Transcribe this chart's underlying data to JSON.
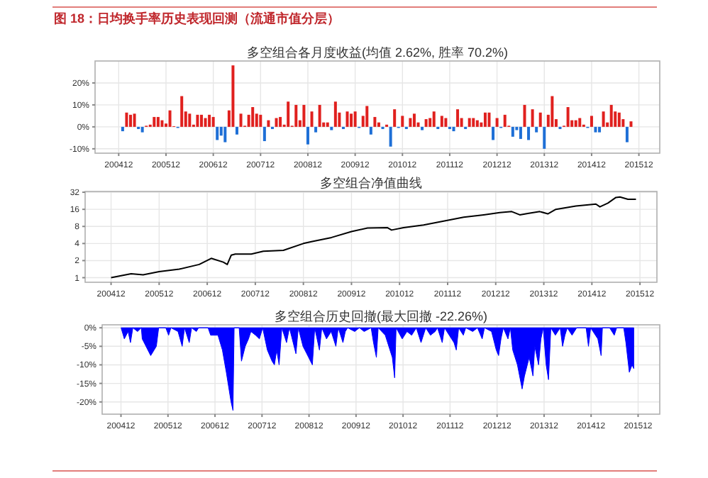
{
  "chart_data": [
    {
      "type": "bar",
      "title": "多空组合各月度收益(均值 2.62%, 胜率 70.2%)",
      "annotations": [
        "图 18：日均换手率历史表现回测（流通市值分层）"
      ],
      "grid": true,
      "xlim": [
        "2004-06-01",
        "2016-05-10"
      ],
      "ylim": [
        -12,
        30
      ],
      "xticks": [
        {
          "value": "2004-12",
          "label": "200412"
        },
        {
          "value": "2005-12",
          "label": "200512"
        },
        {
          "value": "2006-12",
          "label": "200612"
        },
        {
          "value": "2007-12",
          "label": "200712"
        },
        {
          "value": "2008-12",
          "label": "200812"
        },
        {
          "value": "2009-12",
          "label": "200912"
        },
        {
          "value": "2010-12",
          "label": "201012"
        },
        {
          "value": "2011-12",
          "label": "201112"
        },
        {
          "value": "2012-12",
          "label": "201212"
        },
        {
          "value": "2013-12",
          "label": "201312"
        },
        {
          "value": "2014-12",
          "label": "201412"
        },
        {
          "value": "2015-12",
          "label": "201512"
        }
      ],
      "yticks": [
        {
          "value": -10,
          "label": "-10%"
        },
        {
          "value": 0,
          "label": "0%"
        },
        {
          "value": 10,
          "label": "10%"
        },
        {
          "value": 20,
          "label": "20%"
        }
      ],
      "x": [
        "2005-01",
        "2005-02",
        "2005-03",
        "2005-04",
        "2005-05",
        "2005-06",
        "2005-07",
        "2005-08",
        "2005-09",
        "2005-10",
        "2005-11",
        "2005-12",
        "2006-01",
        "2006-02",
        "2006-03",
        "2006-04",
        "2006-05",
        "2006-06",
        "2006-07",
        "2006-08",
        "2006-09",
        "2006-10",
        "2006-11",
        "2006-12",
        "2007-01",
        "2007-02",
        "2007-03",
        "2007-04",
        "2007-05",
        "2007-06",
        "2007-07",
        "2007-08",
        "2007-09",
        "2007-10",
        "2007-11",
        "2007-12",
        "2008-01",
        "2008-02",
        "2008-03",
        "2008-04",
        "2008-05",
        "2008-06",
        "2008-07",
        "2008-08",
        "2008-09",
        "2008-10",
        "2008-11",
        "2008-12",
        "2009-01",
        "2009-02",
        "2009-03",
        "2009-04",
        "2009-05",
        "2009-06",
        "2009-07",
        "2009-08",
        "2009-09",
        "2009-10",
        "2009-11",
        "2009-12",
        "2010-01",
        "2010-02",
        "2010-03",
        "2010-04",
        "2010-05",
        "2010-06",
        "2010-07",
        "2010-08",
        "2010-09",
        "2010-10",
        "2010-11",
        "2010-12",
        "2011-01",
        "2011-02",
        "2011-03",
        "2011-04",
        "2011-05",
        "2011-06",
        "2011-07",
        "2011-08",
        "2011-09",
        "2011-10",
        "2011-11",
        "2011-12",
        "2012-01",
        "2012-02",
        "2012-03",
        "2012-04",
        "2012-05",
        "2012-06",
        "2012-07",
        "2012-08",
        "2012-09",
        "2012-10",
        "2012-11",
        "2012-12",
        "2013-01",
        "2013-02",
        "2013-03",
        "2013-04",
        "2013-05",
        "2013-06",
        "2013-07",
        "2013-08",
        "2013-09",
        "2013-10",
        "2013-11",
        "2013-12",
        "2014-01",
        "2014-02",
        "2014-03",
        "2014-04",
        "2014-05",
        "2014-06",
        "2014-07",
        "2014-08",
        "2014-09",
        "2014-10",
        "2014-11",
        "2014-12",
        "2015-01",
        "2015-02",
        "2015-03",
        "2015-04",
        "2015-05",
        "2015-06",
        "2015-07",
        "2015-08",
        "2015-09",
        "2015-10"
      ],
      "values": [
        -2,
        6.5,
        5.5,
        6,
        -1,
        -2.5,
        0.5,
        1,
        4.5,
        4.5,
        3,
        1.5,
        7.5,
        0.3,
        -0.5,
        14,
        7,
        6,
        1,
        5.5,
        5.5,
        4,
        5.5,
        4.5,
        -6,
        -4,
        -7,
        7.5,
        28,
        -3.5,
        6,
        0.5,
        5.5,
        9,
        6,
        5.5,
        -6.5,
        3,
        -1,
        4,
        4.5,
        1,
        11.5,
        0.5,
        10,
        3,
        10,
        -8,
        7,
        -2.5,
        10,
        2,
        2,
        -1.5,
        11.5,
        6.5,
        -1,
        7,
        6,
        7,
        -0.5,
        5,
        9.5,
        -3.5,
        4.5,
        2,
        -1,
        1,
        -9,
        8,
        -0.5,
        5,
        -1,
        4,
        6,
        2,
        -1.5,
        3.5,
        4,
        7,
        -1,
        5,
        4,
        -1,
        -2,
        8,
        4,
        -1,
        4,
        4,
        3,
        2,
        6.5,
        6.5,
        -6,
        4,
        -0.5,
        5.5,
        0.5,
        -4.5,
        -1.5,
        -5.5,
        10,
        -6,
        8,
        -2.5,
        6.5,
        -10,
        5.5,
        14,
        3.5,
        -1,
        0.5,
        9,
        3,
        3,
        4,
        1,
        -0.5,
        5,
        -2.5,
        -2.5,
        7,
        2,
        10,
        7,
        6.5,
        3.5,
        -7,
        2.5
      ],
      "colors": [
        "#1e6fd6",
        "#e0201e",
        "#e0201e",
        "#e0201e",
        "#1e6fd6",
        "#1e6fd6",
        "#e0201e",
        "#e0201e",
        "#e0201e",
        "#e0201e",
        "#e0201e",
        "#e0201e",
        "#e0201e",
        "#e0201e",
        "#1e6fd6",
        "#e0201e",
        "#e0201e",
        "#e0201e",
        "#e0201e",
        "#e0201e",
        "#e0201e",
        "#e0201e",
        "#e0201e",
        "#e0201e",
        "#1e6fd6",
        "#1e6fd6",
        "#1e6fd6",
        "#e0201e",
        "#e0201e",
        "#1e6fd6",
        "#e0201e",
        "#e0201e",
        "#e0201e",
        "#e0201e",
        "#e0201e",
        "#e0201e",
        "#1e6fd6",
        "#e0201e",
        "#1e6fd6",
        "#e0201e",
        "#e0201e",
        "#e0201e",
        "#e0201e",
        "#e0201e",
        "#e0201e",
        "#e0201e",
        "#e0201e",
        "#1e6fd6",
        "#e0201e",
        "#1e6fd6",
        "#e0201e",
        "#e0201e",
        "#e0201e",
        "#1e6fd6",
        "#e0201e",
        "#e0201e",
        "#1e6fd6",
        "#e0201e",
        "#e0201e",
        "#e0201e",
        "#1e6fd6",
        "#e0201e",
        "#e0201e",
        "#1e6fd6",
        "#e0201e",
        "#e0201e",
        "#1e6fd6",
        "#e0201e",
        "#1e6fd6",
        "#e0201e",
        "#1e6fd6",
        "#e0201e",
        "#1e6fd6",
        "#e0201e",
        "#e0201e",
        "#e0201e",
        "#1e6fd6",
        "#e0201e",
        "#e0201e",
        "#e0201e",
        "#1e6fd6",
        "#e0201e",
        "#e0201e",
        "#1e6fd6",
        "#1e6fd6",
        "#e0201e",
        "#e0201e",
        "#1e6fd6",
        "#e0201e",
        "#e0201e",
        "#e0201e",
        "#e0201e",
        "#e0201e",
        "#e0201e",
        "#1e6fd6",
        "#e0201e",
        "#1e6fd6",
        "#e0201e",
        "#e0201e",
        "#1e6fd6",
        "#1e6fd6",
        "#1e6fd6",
        "#e0201e",
        "#1e6fd6",
        "#e0201e",
        "#1e6fd6",
        "#e0201e",
        "#1e6fd6",
        "#e0201e",
        "#e0201e",
        "#e0201e",
        "#1e6fd6",
        "#e0201e",
        "#e0201e",
        "#e0201e",
        "#e0201e",
        "#e0201e",
        "#e0201e",
        "#1e6fd6",
        "#e0201e",
        "#1e6fd6",
        "#1e6fd6",
        "#e0201e",
        "#e0201e",
        "#e0201e",
        "#e0201e",
        "#e0201e",
        "#e0201e",
        "#1e6fd6",
        "#e0201e"
      ]
    },
    {
      "type": "line",
      "title": "多空组合净值曲线",
      "grid": true,
      "log": true,
      "color": "#000000",
      "xlim": [
        "2004-05-17",
        "2016-04-08"
      ],
      "ylim": [
        0.83,
        33
      ],
      "xticks": [
        {
          "value": "2004-12",
          "label": "200412"
        },
        {
          "value": "2005-12",
          "label": "200512"
        },
        {
          "value": "2006-12",
          "label": "200612"
        },
        {
          "value": "2007-12",
          "label": "200712"
        },
        {
          "value": "2008-12",
          "label": "200812"
        },
        {
          "value": "2009-12",
          "label": "200912"
        },
        {
          "value": "2010-12",
          "label": "201012"
        },
        {
          "value": "2011-12",
          "label": "201112"
        },
        {
          "value": "2012-12",
          "label": "201212"
        },
        {
          "value": "2013-12",
          "label": "201312"
        },
        {
          "value": "2014-12",
          "label": "201412"
        },
        {
          "value": "2015-12",
          "label": "201512"
        }
      ],
      "yticks": [
        1,
        2,
        4,
        8,
        16,
        32
      ],
      "x": [
        "2004-12",
        "2005-05",
        "2005-08",
        "2005-12",
        "2006-05",
        "2006-10",
        "2007-01",
        "2007-04",
        "2007-05",
        "2007-06",
        "2007-07",
        "2007-11",
        "2008-02",
        "2008-07",
        "2008-12",
        "2009-02",
        "2009-07",
        "2009-12",
        "2010-04",
        "2010-09",
        "2010-10",
        "2011-01",
        "2011-06",
        "2011-11",
        "2012-04",
        "2012-09",
        "2013-01",
        "2013-04",
        "2013-06",
        "2013-08",
        "2013-11",
        "2014-01",
        "2014-03",
        "2014-08",
        "2015-01",
        "2015-02",
        "2015-04",
        "2015-06",
        "2015-07",
        "2015-09",
        "2015-11"
      ],
      "values": [
        1.0,
        1.17,
        1.12,
        1.28,
        1.41,
        1.71,
        2.19,
        1.88,
        1.71,
        2.5,
        2.6,
        2.6,
        2.92,
        3.03,
        4.0,
        4.3,
        5.1,
        6.5,
        7.5,
        7.6,
        6.9,
        7.6,
        8.5,
        9.9,
        11.6,
        12.8,
        14.0,
        14.6,
        12.8,
        13.5,
        14.6,
        13.3,
        16.0,
        18.3,
        19.8,
        17.7,
        20.6,
        25.9,
        26.4,
        24,
        24
      ]
    },
    {
      "type": "area",
      "title": "多空组合历史回撤(最大回撤 -22.26%)",
      "grid": true,
      "color": "#0000ff",
      "xlim": [
        "2004-07-07",
        "2016-05-17"
      ],
      "ylim": [
        -23.3,
        0.8
      ],
      "xticks": [
        {
          "value": "2004-12",
          "label": "200412"
        },
        {
          "value": "2005-12",
          "label": "200512"
        },
        {
          "value": "2006-12",
          "label": "200612"
        },
        {
          "value": "2007-12",
          "label": "200712"
        },
        {
          "value": "2008-12",
          "label": "200812"
        },
        {
          "value": "2009-12",
          "label": "200912"
        },
        {
          "value": "2010-12",
          "label": "201012"
        },
        {
          "value": "2011-12",
          "label": "201112"
        },
        {
          "value": "2012-12",
          "label": "201212"
        },
        {
          "value": "2013-12",
          "label": "201312"
        },
        {
          "value": "2014-12",
          "label": "201412"
        },
        {
          "value": "2015-12",
          "label": "201512"
        }
      ],
      "yticks": [
        {
          "value": -20,
          "label": "-20%"
        },
        {
          "value": -15,
          "label": "-15%"
        },
        {
          "value": -10,
          "label": "-10%"
        },
        {
          "value": -5,
          "label": "-5%"
        },
        {
          "value": 0,
          "label": "0%"
        }
      ],
      "x": [
        "2004-12-02",
        "2004-12-27",
        "2005-01-26",
        "2005-02-14",
        "2005-03-02",
        "2005-04-08",
        "2005-05-07",
        "2005-05-14",
        "2005-07-19",
        "2005-09-02",
        "2005-09-20",
        "2005-11-14",
        "2005-12-06",
        "2005-12-24",
        "2006-02-18",
        "2006-03-20",
        "2006-04-08",
        "2006-05-14",
        "2006-06-02",
        "2006-07-08",
        "2006-07-26",
        "2006-10-08",
        "2006-10-28",
        "2006-12-24",
        "2007-01-28",
        "2007-02-28",
        "2007-04-04",
        "2007-04-19",
        "2007-04-28",
        "2007-06-06",
        "2007-06-24",
        "2007-07-23",
        "2007-08-18",
        "2007-09-06",
        "2007-10-12",
        "2007-11-11",
        "2007-12-06",
        "2008-01-12",
        "2008-02-18",
        "2008-03-06",
        "2008-03-24",
        "2008-04-12",
        "2008-05-03",
        "2008-06-09",
        "2008-07-01",
        "2008-08-21",
        "2008-09-09",
        "2008-10-15",
        "2008-11-14",
        "2008-12-27",
        "2009-01-15",
        "2009-02-21",
        "2009-03-09",
        "2009-04-15",
        "2009-05-21",
        "2009-06-27",
        "2009-07-15",
        "2009-08-21",
        "2009-09-09",
        "2009-09-27",
        "2009-11-21",
        "2009-12-27",
        "2010-02-03",
        "2010-03-27",
        "2010-04-15",
        "2010-05-07",
        "2010-05-21",
        "2010-07-15",
        "2010-09-09",
        "2010-09-27",
        "2010-10-08",
        "2010-11-25",
        "2011-01-01",
        "2011-02-07",
        "2011-03-13",
        "2011-04-19",
        "2011-05-25",
        "2011-07-01",
        "2011-08-07",
        "2011-08-25",
        "2011-10-01",
        "2011-10-19",
        "2011-11-25",
        "2012-01-01",
        "2012-01-19",
        "2012-02-07",
        "2012-03-13",
        "2012-04-01",
        "2012-05-25",
        "2012-07-01",
        "2012-08-07",
        "2012-08-25",
        "2012-10-19",
        "2012-11-25",
        "2012-12-13",
        "2013-01-01",
        "2013-01-19",
        "2013-02-25",
        "2013-03-13",
        "2013-04-01",
        "2013-05-07",
        "2013-06-13",
        "2013-07-01",
        "2013-08-07",
        "2013-09-06",
        "2013-09-20",
        "2013-10-19",
        "2013-11-07",
        "2013-11-25",
        "2013-12-17",
        "2014-01-05",
        "2014-01-23",
        "2014-02-28",
        "2014-04-04",
        "2014-04-23",
        "2014-05-11",
        "2014-05-29",
        "2014-07-05",
        "2014-08-11",
        "2014-10-23",
        "2014-11-11",
        "2014-11-28",
        "2015-01-23",
        "2015-02-18",
        "2015-02-28",
        "2015-04-23",
        "2015-05-29",
        "2015-06-17",
        "2015-08-11",
        "2015-08-28",
        "2015-09-24",
        "2015-10-15",
        "2015-10-28"
      ],
      "values": [
        0,
        -3,
        -1,
        -4,
        0,
        -1,
        0,
        -3,
        -7.5,
        -5,
        0,
        0,
        -2,
        0,
        -1,
        -5,
        0,
        -4,
        0,
        -1,
        0,
        0,
        -2,
        -2,
        -6,
        -12,
        -20,
        -22.3,
        0,
        0,
        -9,
        -5,
        -3,
        -1,
        -2,
        -3,
        0,
        -6,
        -9,
        -10,
        -6,
        -10,
        0,
        -4,
        0,
        -7,
        0,
        -5,
        -7,
        -10,
        0,
        -6,
        0,
        -3,
        -1,
        -5,
        0,
        -4,
        -1,
        0,
        -1,
        0,
        -1,
        0,
        -4,
        -8,
        0,
        -2,
        -8,
        -13.5,
        0,
        -3,
        -1,
        -2,
        0,
        -4,
        0,
        -2,
        -1,
        0,
        -4,
        0,
        -2,
        -4,
        -6,
        0,
        -2,
        0,
        -1,
        0,
        -3,
        0,
        -1,
        -6,
        -7.5,
        -3,
        0,
        -3,
        0,
        -6,
        -10,
        -16.5,
        -13,
        -8,
        -13,
        -5,
        -10,
        -3,
        0,
        -10,
        -14,
        0,
        -2,
        0,
        -5,
        -2,
        0,
        -2,
        0,
        0,
        -5,
        0,
        -3,
        -7.5,
        0,
        0,
        -2,
        0,
        0,
        -4,
        -12,
        -10,
        -11
      ]
    }
  ]
}
